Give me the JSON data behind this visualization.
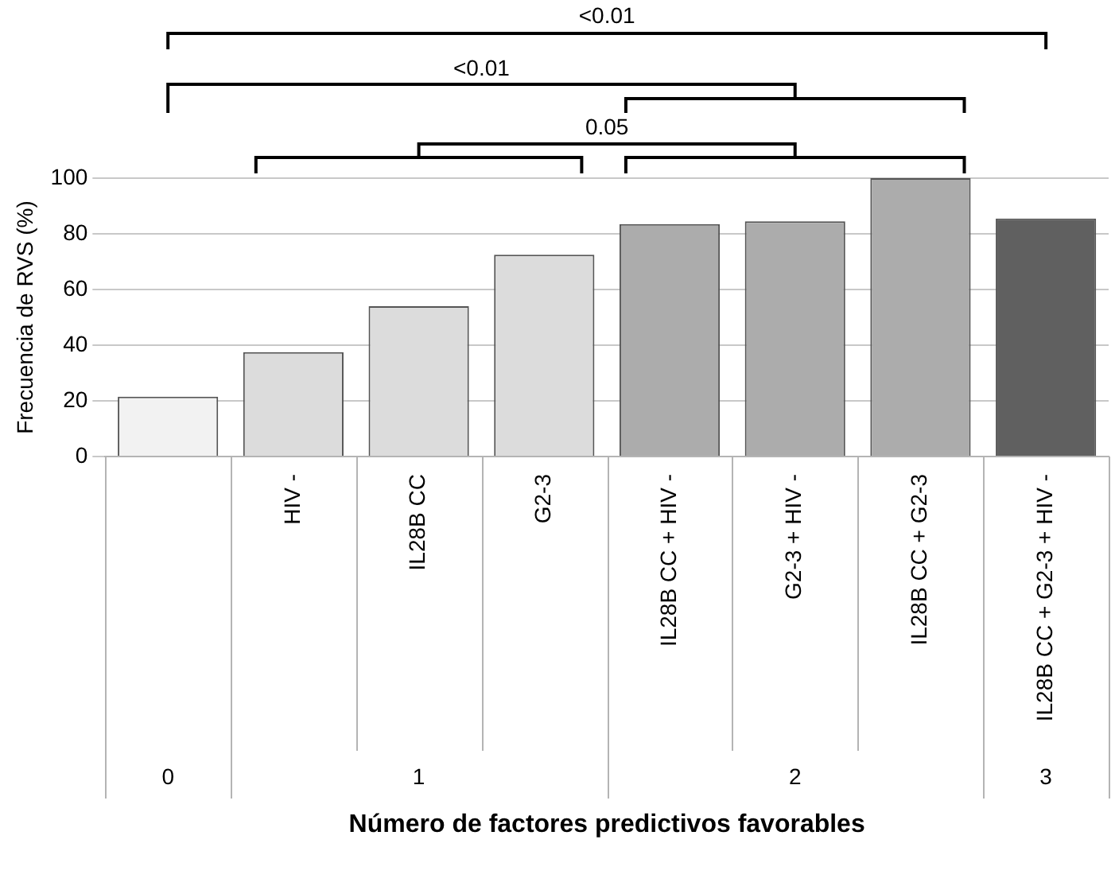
{
  "chart_data": {
    "type": "bar",
    "xlabel": "Número de factores predictivos favorables",
    "ylabel": "Frecuencia de RVS (%)",
    "categories": [
      null,
      "HIV -",
      "IL28B CC",
      "G2-3",
      "IL28B CC + HIV -",
      "G2-3 + HIV -",
      "IL28B CC + G2-3",
      "IL28B CC + G2-3 + HIV -"
    ],
    "values": [
      21.5,
      37.5,
      54,
      72.5,
      83.5,
      84.5,
      100,
      85.5
    ],
    "colors": [
      "#f2f2f2",
      "#dcdcdc",
      "#dcdcdc",
      "#dcdcdc",
      "#acacac",
      "#acacac",
      "#acacac",
      "#606060"
    ],
    "ylim": [
      0,
      100
    ],
    "yticks": [
      0,
      20,
      40,
      60,
      80,
      100
    ],
    "grid": "y",
    "legend": false,
    "annotations": [
      "<0.01",
      "<0.01",
      "0.05",
      "0",
      "1",
      "2",
      "3"
    ]
  }
}
